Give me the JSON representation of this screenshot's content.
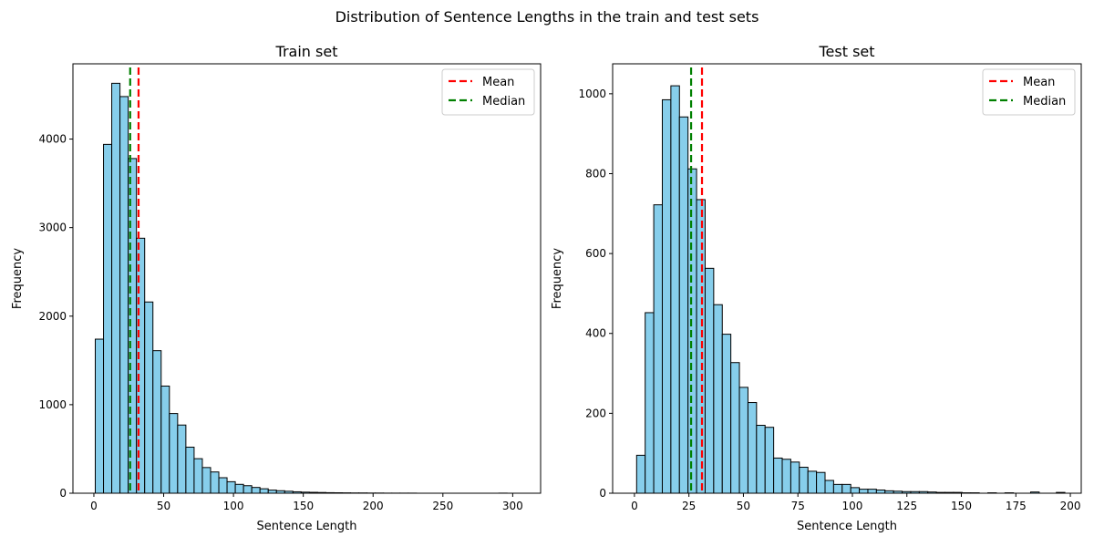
{
  "figure_title": "Distribution of Sentence Lengths in the train and test sets",
  "colors": {
    "bar_fill": "#87ceeb",
    "bar_edge": "#000000",
    "mean_line": "#ff0000",
    "median_line": "#008000"
  },
  "chart_data": [
    {
      "type": "bar",
      "title": "Train set",
      "xlabel": "Sentence Length",
      "ylabel": "Frequency",
      "xlim": [
        -15,
        320
      ],
      "ylim": [
        0,
        4850
      ],
      "xticks": [
        0,
        50,
        100,
        150,
        200,
        250,
        300
      ],
      "yticks": [
        0,
        1000,
        2000,
        3000,
        4000
      ],
      "bin_start": 1,
      "bin_width": 5.9,
      "values": [
        1740,
        3940,
        4630,
        4480,
        3780,
        2880,
        2160,
        1610,
        1210,
        900,
        770,
        520,
        390,
        290,
        240,
        175,
        130,
        100,
        85,
        65,
        50,
        35,
        28,
        22,
        16,
        12,
        10,
        8,
        6,
        5,
        4,
        3,
        3,
        2,
        2,
        1,
        1,
        1,
        1,
        0,
        0,
        0,
        0,
        0,
        0,
        0,
        0,
        0,
        0,
        1
      ],
      "mean": 32,
      "median": 26,
      "legend": [
        "Mean",
        "Median"
      ],
      "legend_position": "upper-right",
      "grid": false
    },
    {
      "type": "bar",
      "title": "Test set",
      "xlabel": "Sentence Length",
      "ylabel": "Frequency",
      "xlim": [
        -10,
        205
      ],
      "ylim": [
        0,
        1075
      ],
      "xticks": [
        0,
        25,
        50,
        75,
        100,
        125,
        150,
        175,
        200
      ],
      "yticks": [
        0,
        200,
        400,
        600,
        800,
        1000
      ],
      "bin_start": 1,
      "bin_width": 3.93,
      "values": [
        95,
        452,
        722,
        985,
        1020,
        942,
        812,
        735,
        563,
        472,
        398,
        327,
        265,
        227,
        170,
        165,
        88,
        85,
        78,
        65,
        55,
        52,
        32,
        22,
        22,
        14,
        10,
        10,
        8,
        6,
        5,
        4,
        4,
        4,
        3,
        2,
        2,
        2,
        1,
        1,
        0,
        1,
        0,
        1,
        0,
        0,
        3,
        0,
        0,
        2
      ],
      "mean": 31,
      "median": 26,
      "legend": [
        "Mean",
        "Median"
      ],
      "legend_position": "upper-right",
      "grid": false
    }
  ]
}
